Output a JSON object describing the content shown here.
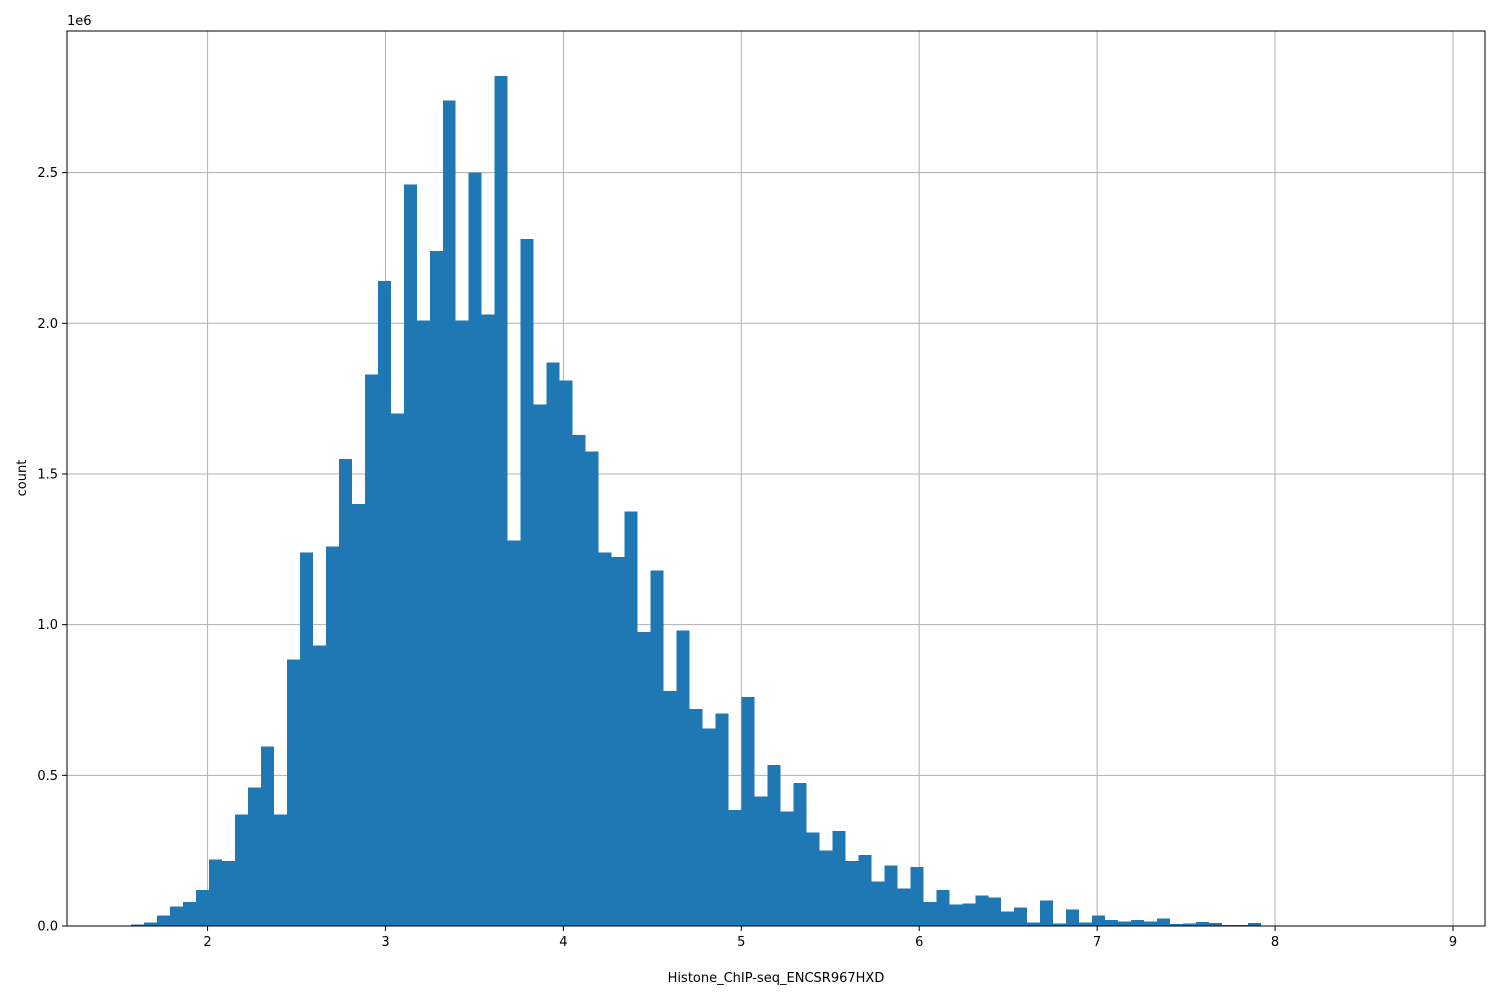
{
  "chart_data": {
    "type": "bar",
    "xlabel": "Histone_ChIP-seq_ENCSR967HXD",
    "ylabel": "count",
    "y_scale_label": "1e6",
    "xlim": [
      1.21,
      9.18
    ],
    "ylim": [
      0,
      2970000
    ],
    "xticks": [
      2,
      3,
      4,
      5,
      6,
      7,
      8,
      9
    ],
    "xtick_labels": [
      "2",
      "3",
      "4",
      "5",
      "6",
      "7",
      "8",
      "9"
    ],
    "yticks": [
      0,
      500000,
      1000000,
      1500000,
      2000000,
      2500000
    ],
    "ytick_labels": [
      "0.0",
      "0.5",
      "1.0",
      "1.5",
      "2.0",
      "2.5"
    ],
    "grid": true,
    "bar_color": "#1f77b4",
    "bin_start": 1.57,
    "bin_width": 0.073,
    "values": [
      5000,
      12000,
      35000,
      65000,
      80000,
      120000,
      220000,
      215000,
      370000,
      460000,
      595000,
      370000,
      885000,
      1240000,
      930000,
      1260000,
      1550000,
      1400000,
      1830000,
      2140000,
      1700000,
      2460000,
      2010000,
      2240000,
      2740000,
      2010000,
      2500000,
      2030000,
      2820000,
      1280000,
      2280000,
      1730000,
      1870000,
      1810000,
      1630000,
      1575000,
      1240000,
      1225000,
      1375000,
      975000,
      1180000,
      780000,
      980000,
      720000,
      655000,
      705000,
      385000,
      760000,
      430000,
      535000,
      380000,
      475000,
      310000,
      250000,
      315000,
      215000,
      235000,
      148000,
      200000,
      125000,
      195000,
      80000,
      120000,
      72000,
      75000,
      102000,
      95000,
      48000,
      62000,
      12000,
      85000,
      8000,
      55000,
      12000,
      35000,
      20000,
      15000,
      20000,
      15000,
      25000,
      6000,
      8000,
      14000,
      10000,
      4000,
      3000,
      10000,
      1500,
      1500,
      1000,
      1000,
      1000,
      1000,
      1000,
      800,
      800,
      800,
      800,
      800,
      800,
      800,
      800,
      800,
      800
    ]
  }
}
